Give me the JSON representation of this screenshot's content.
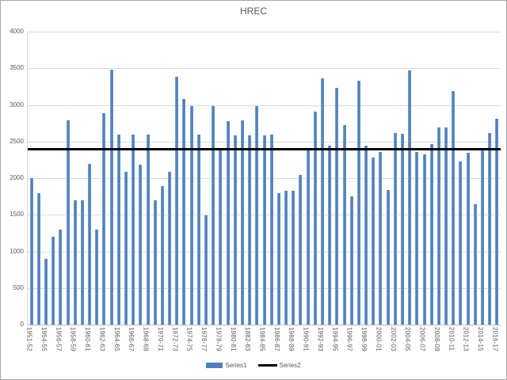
{
  "chart_data": {
    "type": "bar",
    "title": "HREC",
    "ylim": [
      0,
      4000
    ],
    "ytick_step": 500,
    "y_tick_labels": [
      "0",
      "500",
      "1000",
      "1500",
      "2000",
      "2500",
      "3000",
      "3500",
      "4000"
    ],
    "grid": "horizontal",
    "legend_position": "bottom",
    "x_label_every": 2,
    "x_tick_labels": [
      "1951-52",
      "1954-55",
      "1956-57",
      "1958-59",
      "1960-61",
      "1962-63",
      "1964-65",
      "1966-67",
      "1968-69",
      "1970-71",
      "1972-73",
      "1974-75",
      "1976-77",
      "1978-79",
      "1980-81",
      "1882-83",
      "1984-85",
      "1986-87",
      "1988-89",
      "1990-91",
      "1992-93",
      "1994-95",
      "1996-97",
      "1998-99",
      "2000-01",
      "2002-03",
      "2004-05",
      "2006-07",
      "2008-09",
      "2010-11",
      "2012-13",
      "2014-15",
      "2016-17"
    ],
    "series": [
      {
        "name": "Series1",
        "type": "bar",
        "color": "#4f81bd",
        "values": [
          2000,
          1800,
          900,
          1200,
          1300,
          2790,
          1700,
          1700,
          2190,
          1300,
          2890,
          3480,
          2590,
          2090,
          2590,
          2180,
          2590,
          1700,
          1890,
          2090,
          3380,
          3080,
          2980,
          2590,
          1490,
          2980,
          2390,
          2780,
          2580,
          2790,
          2580,
          2980,
          2580,
          2600,
          1800,
          1830,
          1830,
          2040,
          2410,
          2910,
          3360,
          2440,
          3230,
          2720,
          1750,
          3330,
          2440,
          2280,
          2360,
          1840,
          2620,
          2610,
          3470,
          2360,
          2320,
          2470,
          2690,
          2690,
          3190,
          2230,
          2350,
          1640,
          2400,
          2620,
          2810
        ]
      },
      {
        "name": "Series2",
        "type": "line",
        "color": "#000000",
        "constant_value": 2400
      }
    ]
  }
}
